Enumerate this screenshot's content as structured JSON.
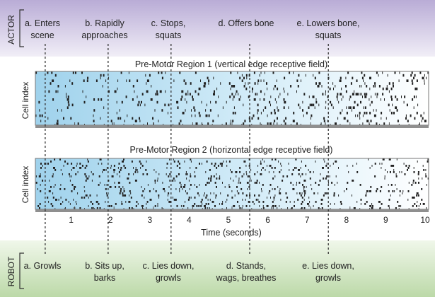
{
  "actor": {
    "label": "ACTOR",
    "events": [
      {
        "line1": "a. Enters",
        "line2": "scene",
        "time": 0.25
      },
      {
        "line1": "b. Rapidly",
        "line2": "approaches",
        "time": 1.85
      },
      {
        "line1": "c. Stops,",
        "line2": "squats",
        "time": 3.45
      },
      {
        "line1": "d. Offers bone",
        "line2": "",
        "time": 5.45
      },
      {
        "line1": "e. Lowers bone,",
        "line2": "squats",
        "time": 7.45
      }
    ]
  },
  "robot": {
    "label": "ROBOT",
    "events": [
      {
        "line1": "a. Growls",
        "line2": "",
        "time": 0.25
      },
      {
        "line1": "b. Sits up,",
        "line2": "barks",
        "time": 1.85
      },
      {
        "line1": "c. Lies down,",
        "line2": "growls",
        "time": 3.45
      },
      {
        "line1": "d. Stands,",
        "line2": "wags, breathes",
        "time": 5.45
      },
      {
        "line1": "e. Lies down,",
        "line2": "growls",
        "time": 7.45
      }
    ]
  },
  "regions": [
    {
      "title": "Pre-Motor Region 1 (vertical edge receptive field)",
      "ylabel": "Cell index"
    },
    {
      "title": "Pre-Motor Region 2 (horizontal edge receptive field)",
      "ylabel": "Cell index"
    }
  ],
  "axis": {
    "xlabel": "Time (seconds)",
    "range": [
      0,
      10
    ],
    "ticks": [
      "1",
      "2",
      "3",
      "4",
      "5",
      "6",
      "7",
      "8",
      "9",
      "10"
    ]
  },
  "colors": {
    "actor_band": "#c5b9dc",
    "robot_band": "#c8e0b7",
    "raster_light": "#a9d8ef",
    "spike": "#222222",
    "event_line": "#333333"
  }
}
